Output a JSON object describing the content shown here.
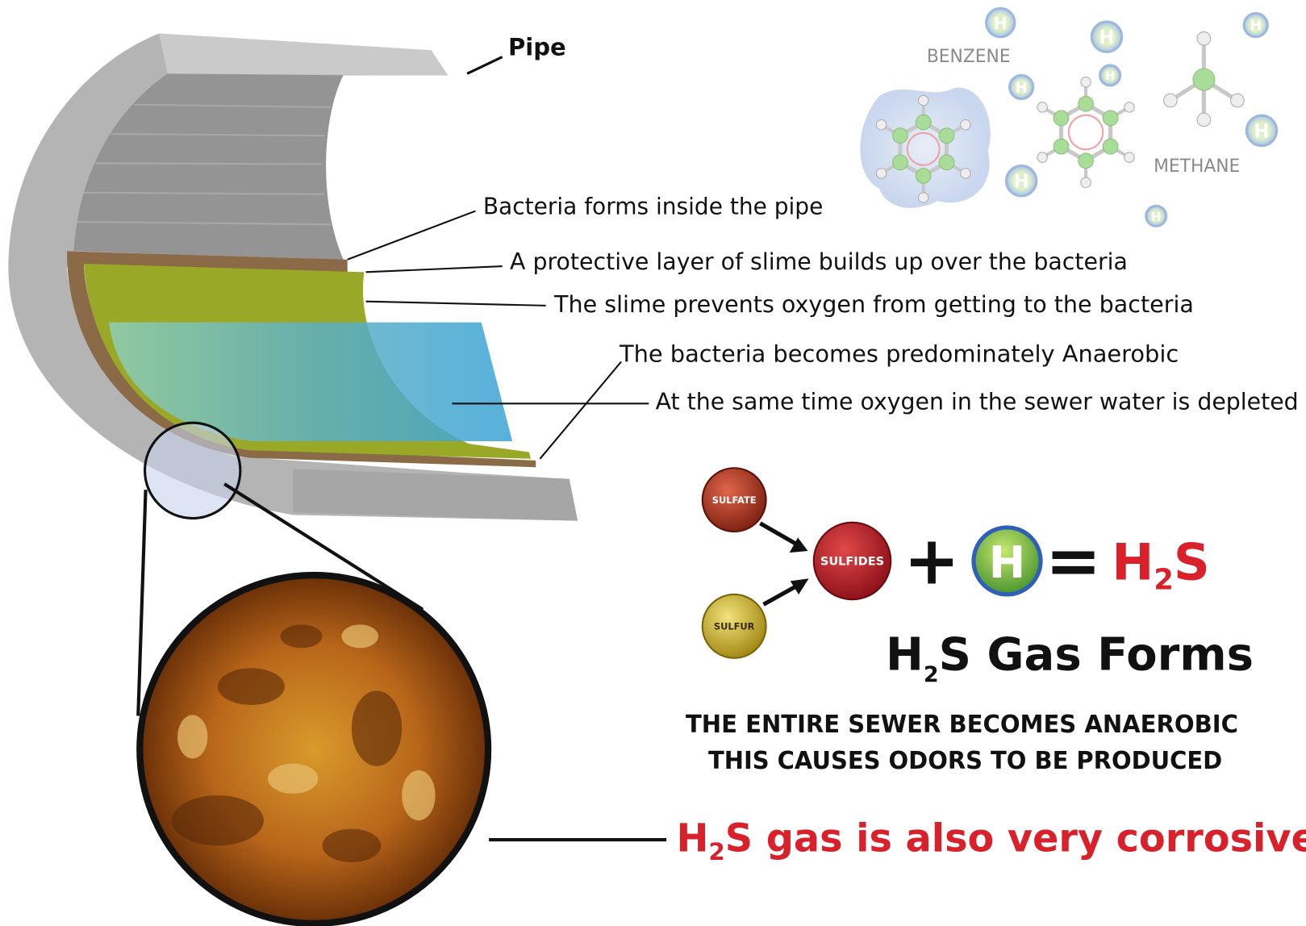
{
  "pipe_label": "Pipe",
  "callouts": [
    "Bacteria forms inside the pipe",
    "A protective layer of slime builds up over the bacteria",
    "The slime prevents oxygen from getting to the bacteria",
    "The bacteria becomes predominately Anaerobic",
    "At the same time oxygen in the sewer water is depleted"
  ],
  "molecules": {
    "benzene": "BENZENE",
    "methane": "METHANE",
    "hydrogen_atoms": [
      "H",
      "H",
      "H",
      "H",
      "H",
      "H",
      "H",
      "H"
    ]
  },
  "reaction": {
    "sulfate": "SULFATE",
    "sulfur": "SULFUR",
    "sulfides": "SULFIDES",
    "plus": "+",
    "hydrogen": "H",
    "equals": "=",
    "result": [
      "H",
      "2",
      "S"
    ]
  },
  "heading": [
    "H",
    "2",
    "S Gas Forms"
  ],
  "statement": [
    "THE ENTIRE SEWER BECOMES ANAEROBIC",
    "THIS CAUSES ODORS TO BE PRODUCED"
  ],
  "corrosive": [
    "H",
    "2",
    "S gas is also very corrosive"
  ]
}
